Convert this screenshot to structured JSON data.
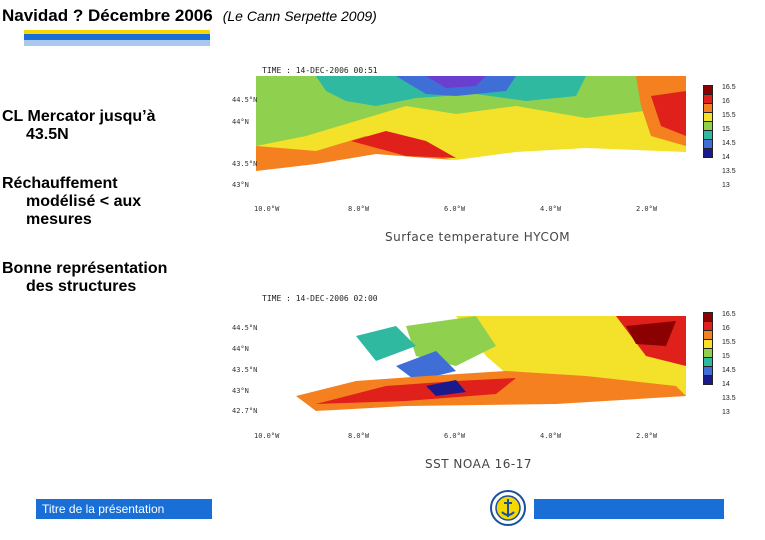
{
  "title": "Navidad ? Décembre 2006",
  "subtitle": "(Le Cann Serpette 2009)",
  "bullets": [
    {
      "line1": "CL Mercator jusqu’à",
      "line2": "43.5N"
    },
    {
      "line1": "Réchauffement",
      "line2": "modélisé < aux",
      "line3": "mesures"
    },
    {
      "line1": "Bonne représentation",
      "line2": "des structures"
    }
  ],
  "map_top": {
    "time_label": "TIME : 14-DEC-2006 00:51",
    "caption": "Surface temperature HYCOM",
    "lat_ticks": [
      "44.5°N",
      "44°N",
      "43.5°N",
      "43°N"
    ],
    "lon_ticks": [
      "10.0°W",
      "8.0°W",
      "6.0°W",
      "4.0°W",
      "2.0°W"
    ],
    "colorbar_labels": [
      "16.5",
      "16",
      "15.5",
      "15",
      "14.5",
      "14",
      "13.5",
      "13"
    ],
    "colors": [
      "#8b0000",
      "#e0201b",
      "#f4801f",
      "#f3e12a",
      "#8fd14f",
      "#2fb9a0",
      "#3f6fd6",
      "#1a1a8c"
    ]
  },
  "map_bottom": {
    "time_label": "TIME : 14-DEC-2006 02:00",
    "caption": "SST NOAA 16-17",
    "lat_ticks": [
      "44.5°N",
      "44°N",
      "43.5°N",
      "43°N",
      "42.7°N"
    ],
    "lon_ticks": [
      "10.0°W",
      "8.0°W",
      "6.0°W",
      "4.0°W",
      "2.0°W"
    ],
    "colorbar_labels": [
      "16.5",
      "16",
      "15.5",
      "15",
      "14.5",
      "14",
      "13.5",
      "13"
    ],
    "colors": [
      "#8b0000",
      "#e0201b",
      "#f4801f",
      "#f3e12a",
      "#8fd14f",
      "#2fb9a0",
      "#3f6fd6",
      "#1a1a8c"
    ]
  },
  "footer": {
    "label": "Titre de la présentation"
  },
  "band_colors": [
    "#f5d800",
    "#1a6fd6",
    "#a9c8ef"
  ]
}
